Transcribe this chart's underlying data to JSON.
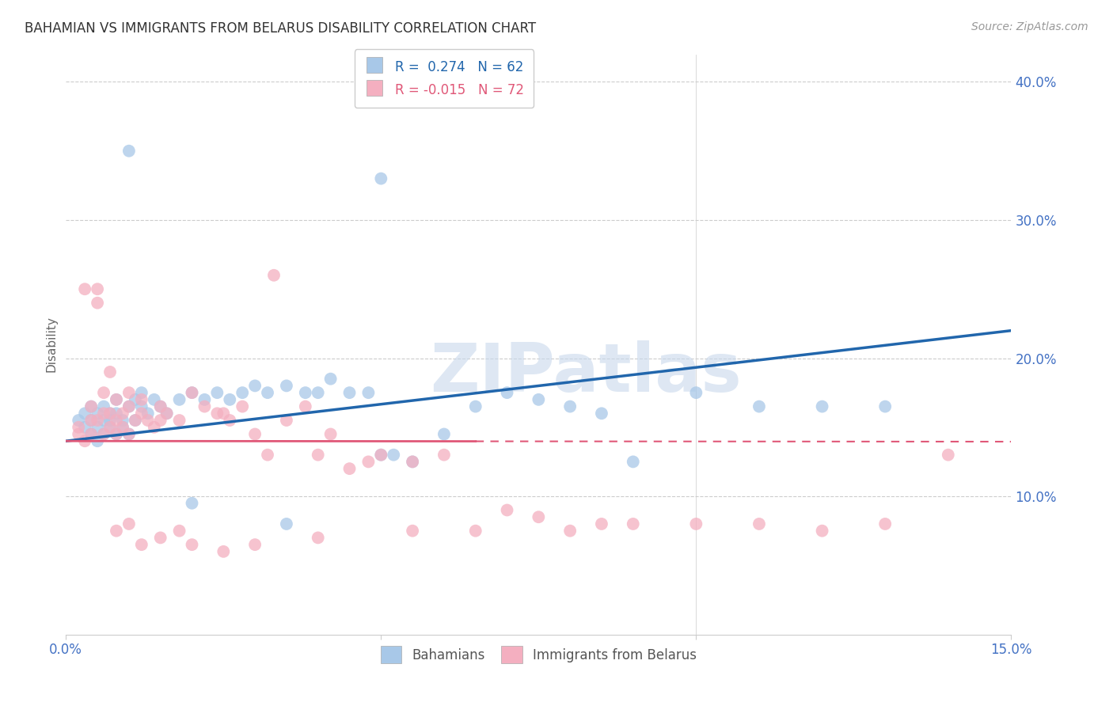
{
  "title": "BAHAMIAN VS IMMIGRANTS FROM BELARUS DISABILITY CORRELATION CHART",
  "source": "Source: ZipAtlas.com",
  "ylabel": "Disability",
  "xlim": [
    0.0,
    0.15
  ],
  "ylim": [
    0.0,
    0.42
  ],
  "yticks": [
    0.1,
    0.2,
    0.3,
    0.4
  ],
  "ytick_labels": [
    "10.0%",
    "20.0%",
    "30.0%",
    "40.0%"
  ],
  "legend_label1": "Bahamians",
  "legend_label2": "Immigrants from Belarus",
  "r1": 0.274,
  "n1": 62,
  "r2": -0.015,
  "n2": 72,
  "blue_color": "#a8c8e8",
  "pink_color": "#f4afc0",
  "blue_line_color": "#2166ac",
  "pink_line_color": "#e05878",
  "background_color": "#ffffff",
  "title_color": "#333333",
  "axis_label_color": "#666666",
  "tick_label_color": "#4472c4",
  "grid_color": "#cccccc",
  "watermark": "ZIPatlas",
  "blue_scatter": [
    [
      0.002,
      0.155
    ],
    [
      0.003,
      0.15
    ],
    [
      0.003,
      0.16
    ],
    [
      0.004,
      0.145
    ],
    [
      0.004,
      0.155
    ],
    [
      0.004,
      0.165
    ],
    [
      0.005,
      0.15
    ],
    [
      0.005,
      0.16
    ],
    [
      0.005,
      0.14
    ],
    [
      0.006,
      0.155
    ],
    [
      0.006,
      0.145
    ],
    [
      0.006,
      0.165
    ],
    [
      0.007,
      0.15
    ],
    [
      0.007,
      0.16
    ],
    [
      0.007,
      0.155
    ],
    [
      0.008,
      0.145
    ],
    [
      0.008,
      0.16
    ],
    [
      0.008,
      0.17
    ],
    [
      0.009,
      0.155
    ],
    [
      0.009,
      0.15
    ],
    [
      0.01,
      0.165
    ],
    [
      0.01,
      0.145
    ],
    [
      0.011,
      0.17
    ],
    [
      0.011,
      0.155
    ],
    [
      0.012,
      0.165
    ],
    [
      0.012,
      0.175
    ],
    [
      0.013,
      0.16
    ],
    [
      0.014,
      0.17
    ],
    [
      0.015,
      0.165
    ],
    [
      0.016,
      0.16
    ],
    [
      0.018,
      0.17
    ],
    [
      0.02,
      0.175
    ],
    [
      0.022,
      0.17
    ],
    [
      0.024,
      0.175
    ],
    [
      0.026,
      0.17
    ],
    [
      0.028,
      0.175
    ],
    [
      0.03,
      0.18
    ],
    [
      0.032,
      0.175
    ],
    [
      0.035,
      0.18
    ],
    [
      0.038,
      0.175
    ],
    [
      0.04,
      0.175
    ],
    [
      0.042,
      0.185
    ],
    [
      0.045,
      0.175
    ],
    [
      0.048,
      0.175
    ],
    [
      0.05,
      0.13
    ],
    [
      0.052,
      0.13
    ],
    [
      0.055,
      0.125
    ],
    [
      0.06,
      0.145
    ],
    [
      0.065,
      0.165
    ],
    [
      0.07,
      0.175
    ],
    [
      0.075,
      0.17
    ],
    [
      0.08,
      0.165
    ],
    [
      0.085,
      0.16
    ],
    [
      0.09,
      0.125
    ],
    [
      0.1,
      0.175
    ],
    [
      0.11,
      0.165
    ],
    [
      0.12,
      0.165
    ],
    [
      0.13,
      0.165
    ],
    [
      0.01,
      0.35
    ],
    [
      0.05,
      0.33
    ],
    [
      0.02,
      0.095
    ],
    [
      0.035,
      0.08
    ]
  ],
  "pink_scatter": [
    [
      0.002,
      0.145
    ],
    [
      0.002,
      0.15
    ],
    [
      0.003,
      0.14
    ],
    [
      0.003,
      0.25
    ],
    [
      0.004,
      0.145
    ],
    [
      0.004,
      0.155
    ],
    [
      0.004,
      0.165
    ],
    [
      0.005,
      0.25
    ],
    [
      0.005,
      0.24
    ],
    [
      0.005,
      0.155
    ],
    [
      0.006,
      0.145
    ],
    [
      0.006,
      0.16
    ],
    [
      0.006,
      0.175
    ],
    [
      0.007,
      0.15
    ],
    [
      0.007,
      0.16
    ],
    [
      0.007,
      0.19
    ],
    [
      0.008,
      0.145
    ],
    [
      0.008,
      0.155
    ],
    [
      0.008,
      0.17
    ],
    [
      0.009,
      0.15
    ],
    [
      0.009,
      0.16
    ],
    [
      0.01,
      0.145
    ],
    [
      0.01,
      0.165
    ],
    [
      0.01,
      0.175
    ],
    [
      0.011,
      0.155
    ],
    [
      0.012,
      0.16
    ],
    [
      0.012,
      0.17
    ],
    [
      0.013,
      0.155
    ],
    [
      0.014,
      0.15
    ],
    [
      0.015,
      0.155
    ],
    [
      0.015,
      0.165
    ],
    [
      0.016,
      0.16
    ],
    [
      0.018,
      0.155
    ],
    [
      0.02,
      0.175
    ],
    [
      0.022,
      0.165
    ],
    [
      0.024,
      0.16
    ],
    [
      0.025,
      0.16
    ],
    [
      0.026,
      0.155
    ],
    [
      0.028,
      0.165
    ],
    [
      0.03,
      0.145
    ],
    [
      0.032,
      0.13
    ],
    [
      0.033,
      0.26
    ],
    [
      0.035,
      0.155
    ],
    [
      0.038,
      0.165
    ],
    [
      0.04,
      0.13
    ],
    [
      0.042,
      0.145
    ],
    [
      0.045,
      0.12
    ],
    [
      0.048,
      0.125
    ],
    [
      0.05,
      0.13
    ],
    [
      0.055,
      0.125
    ],
    [
      0.06,
      0.13
    ],
    [
      0.065,
      0.075
    ],
    [
      0.07,
      0.09
    ],
    [
      0.075,
      0.085
    ],
    [
      0.08,
      0.075
    ],
    [
      0.085,
      0.08
    ],
    [
      0.09,
      0.08
    ],
    [
      0.1,
      0.08
    ],
    [
      0.11,
      0.08
    ],
    [
      0.12,
      0.075
    ],
    [
      0.008,
      0.075
    ],
    [
      0.01,
      0.08
    ],
    [
      0.012,
      0.065
    ],
    [
      0.015,
      0.07
    ],
    [
      0.018,
      0.075
    ],
    [
      0.02,
      0.065
    ],
    [
      0.025,
      0.06
    ],
    [
      0.03,
      0.065
    ],
    [
      0.04,
      0.07
    ],
    [
      0.055,
      0.075
    ],
    [
      0.13,
      0.08
    ],
    [
      0.14,
      0.13
    ]
  ]
}
